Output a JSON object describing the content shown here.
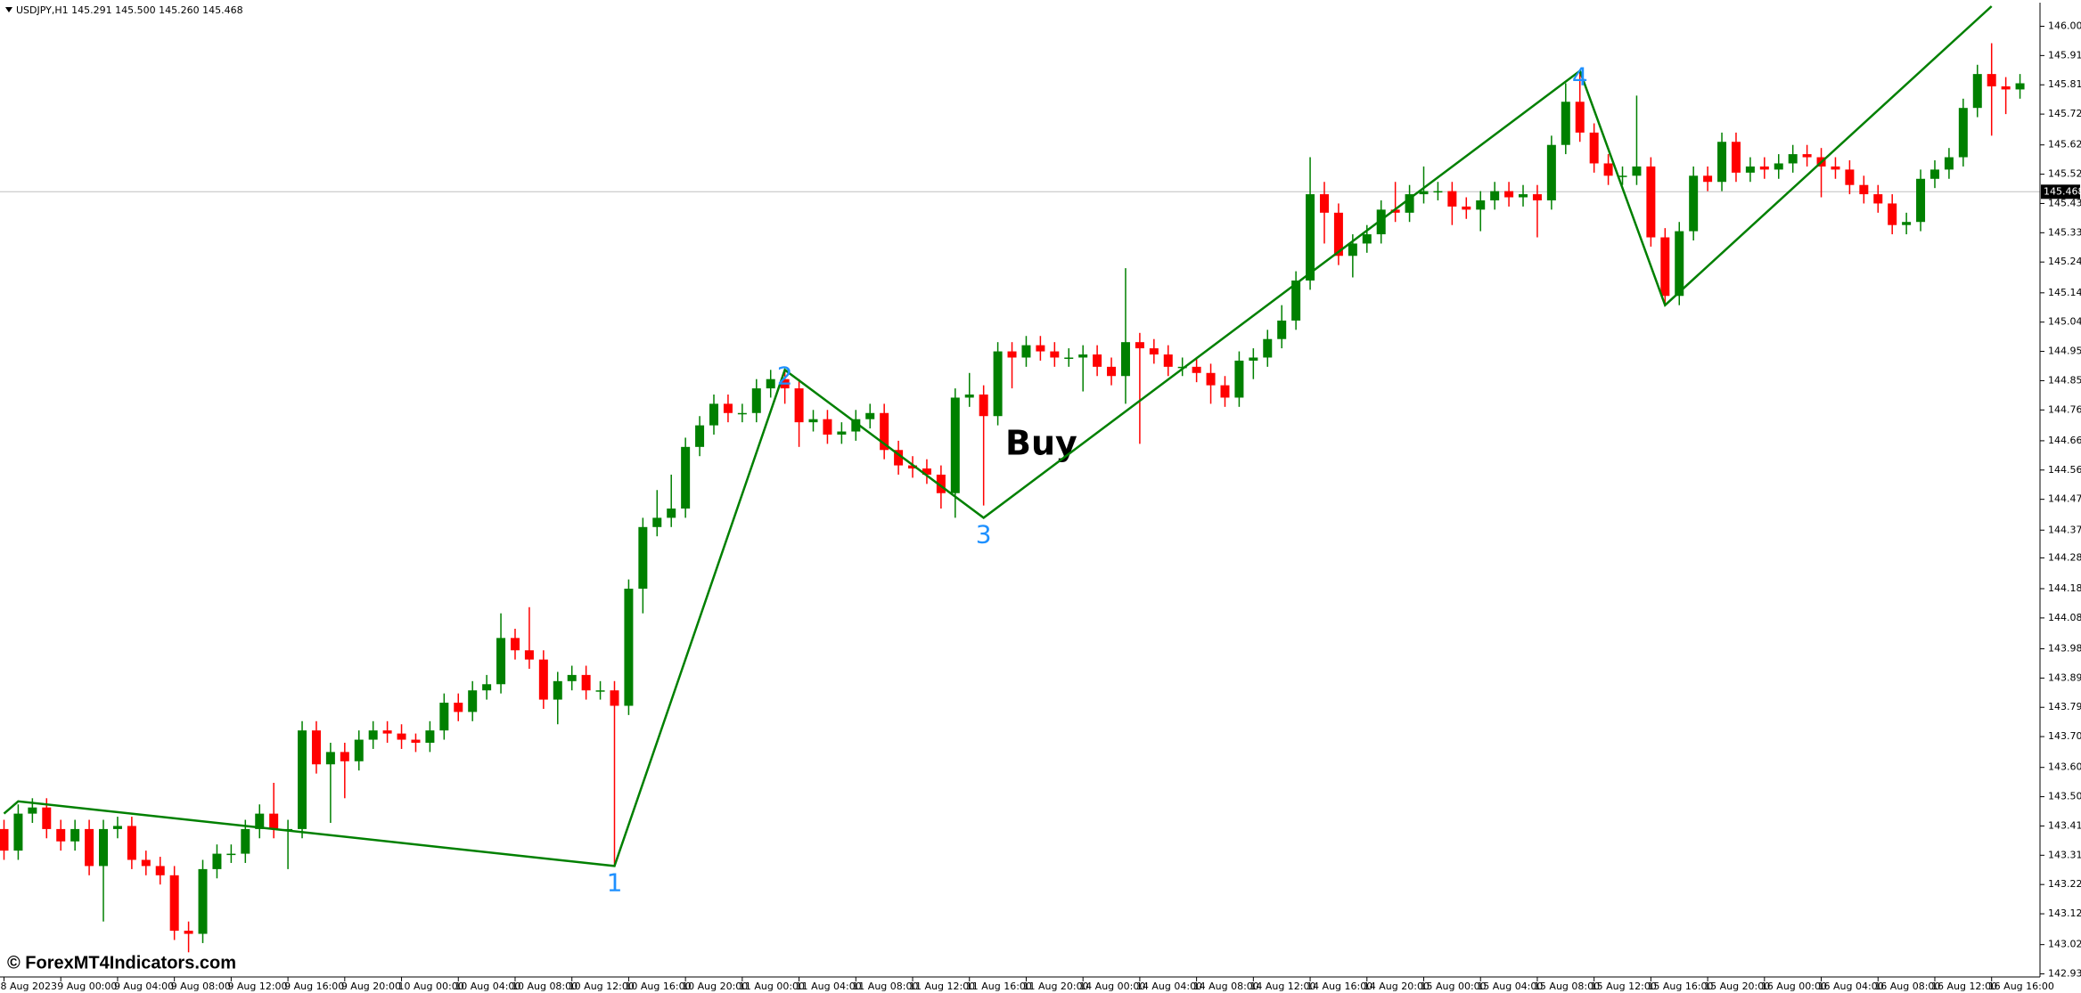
{
  "chart_data": {
    "type": "candlestick",
    "header": "USDJPY,H1  145.291 145.500 145.260 145.468",
    "watermark": "© ForexMT4Indicators.com",
    "annotation": "Buy",
    "up_color": "#008000",
    "down_color": "#ff0000",
    "categories": [
      "8 Aug 2023",
      null,
      null,
      null,
      "9 Aug 00:00",
      null,
      null,
      null,
      "9 Aug 04:00",
      null,
      null,
      null,
      "9 Aug 08:00",
      null,
      null,
      null,
      "9 Aug 12:00",
      null,
      null,
      null,
      "9 Aug 16:00",
      null,
      null,
      null,
      "9 Aug 20:00",
      null,
      null,
      null,
      "10 Aug 00:00",
      null,
      null,
      null,
      "10 Aug 04:00",
      null,
      null,
      null,
      "10 Aug 08:00",
      null,
      null,
      null,
      "10 Aug 12:00",
      null,
      null,
      null,
      "10 Aug 16:00",
      null,
      null,
      null,
      "10 Aug 20:00",
      null,
      null,
      null,
      "11 Aug 00:00",
      null,
      null,
      null,
      "11 Aug 04:00",
      null,
      null,
      null,
      "11 Aug 08:00",
      null,
      null,
      null,
      "11 Aug 12:00",
      null,
      null,
      null,
      "11 Aug 16:00",
      null,
      null,
      null,
      "11 Aug 20:00",
      null,
      null,
      null,
      "14 Aug 00:00",
      null,
      null,
      null,
      "14 Aug 04:00",
      null,
      null,
      null,
      "14 Aug 08:00",
      null,
      null,
      null,
      "14 Aug 12:00",
      null,
      null,
      null,
      "14 Aug 16:00",
      null,
      null,
      null,
      "14 Aug 20:00",
      null,
      null,
      null,
      "15 Aug 00:00",
      null,
      null,
      null,
      "15 Aug 04:00",
      null,
      null,
      null,
      "15 Aug 08:00",
      null,
      null,
      null,
      "15 Aug 12:00",
      null,
      null,
      null,
      "15 Aug 16:00",
      null,
      null,
      null,
      "15 Aug 20:00",
      null,
      null,
      null,
      "16 Aug 00:00",
      null,
      null,
      null,
      "16 Aug 04:00",
      null,
      null,
      null,
      "16 Aug 08:00",
      null,
      null,
      null,
      "16 Aug 12:00",
      null,
      null,
      null,
      "16 Aug 16:00",
      null,
      null
    ],
    "open": [
      143.4,
      143.33,
      143.45,
      143.47,
      143.4,
      143.36,
      143.4,
      143.28,
      143.4,
      143.41,
      143.3,
      143.28,
      143.25,
      143.07,
      143.06,
      143.27,
      143.32,
      143.32,
      143.4,
      143.45,
      143.4,
      143.4,
      143.72,
      143.61,
      143.65,
      143.62,
      143.69,
      143.72,
      143.71,
      143.69,
      143.68,
      143.72,
      143.81,
      143.78,
      143.85,
      143.87,
      144.02,
      143.98,
      143.95,
      143.82,
      143.88,
      143.9,
      143.85,
      143.85,
      143.8,
      144.18,
      144.38,
      144.41,
      144.44,
      144.64,
      144.71,
      144.78,
      144.75,
      144.75,
      144.83,
      144.86,
      144.83,
      144.72,
      144.73,
      144.68,
      144.69,
      144.73,
      144.75,
      144.63,
      144.58,
      144.57,
      144.55,
      144.49,
      144.8,
      144.81,
      144.74,
      144.95,
      144.93,
      144.97,
      144.95,
      144.93,
      144.93,
      144.94,
      144.9,
      144.87,
      144.98,
      144.96,
      144.94,
      144.9,
      144.9,
      144.88,
      144.84,
      144.8,
      144.92,
      144.93,
      144.99,
      145.05,
      145.18,
      145.46,
      145.4,
      145.26,
      145.3,
      145.33,
      145.41,
      145.4,
      145.46,
      145.47,
      145.47,
      145.42,
      145.41,
      145.44,
      145.47,
      145.45,
      145.46,
      145.44,
      145.62,
      145.76,
      145.66,
      145.56,
      145.52,
      145.52,
      145.55,
      145.32,
      145.13,
      145.34,
      145.52,
      145.5,
      145.63,
      145.53,
      145.55,
      145.54,
      145.56,
      145.59,
      145.58,
      145.55,
      145.54,
      145.49,
      145.46,
      145.43,
      145.36,
      145.37,
      145.51,
      145.54,
      145.58,
      145.74,
      145.85,
      145.81,
      145.8
    ],
    "high": [
      143.43,
      143.48,
      143.5,
      143.5,
      143.43,
      143.43,
      143.43,
      143.43,
      143.44,
      143.44,
      143.33,
      143.31,
      143.28,
      143.1,
      143.3,
      143.35,
      143.35,
      143.43,
      143.48,
      143.55,
      143.43,
      143.75,
      143.75,
      143.68,
      143.68,
      143.72,
      143.75,
      143.75,
      143.74,
      143.71,
      143.75,
      143.84,
      143.84,
      143.88,
      143.9,
      144.1,
      144.05,
      144.12,
      143.98,
      143.91,
      143.93,
      143.93,
      143.88,
      143.88,
      144.21,
      144.41,
      144.5,
      144.55,
      144.67,
      144.74,
      144.81,
      144.81,
      144.78,
      144.86,
      144.89,
      144.89,
      144.86,
      144.76,
      144.76,
      144.72,
      144.76,
      144.78,
      144.78,
      144.66,
      144.61,
      144.6,
      144.58,
      144.83,
      144.88,
      144.84,
      144.98,
      144.98,
      145.0,
      145.0,
      144.98,
      144.96,
      144.97,
      144.97,
      144.93,
      145.22,
      145.01,
      144.99,
      144.97,
      144.93,
      144.93,
      144.91,
      144.87,
      144.95,
      144.96,
      145.02,
      145.1,
      145.21,
      145.58,
      145.5,
      145.43,
      145.33,
      145.36,
      145.44,
      145.5,
      145.49,
      145.55,
      145.5,
      145.5,
      145.45,
      145.47,
      145.5,
      145.5,
      145.49,
      145.49,
      145.65,
      145.82,
      145.86,
      145.69,
      145.59,
      145.55,
      145.78,
      145.58,
      145.35,
      145.37,
      145.55,
      145.55,
      145.66,
      145.66,
      145.58,
      145.58,
      145.59,
      145.62,
      145.62,
      145.61,
      145.58,
      145.57,
      145.52,
      145.49,
      145.46,
      145.4,
      145.54,
      145.57,
      145.61,
      145.77,
      145.88,
      145.95,
      145.84,
      145.85
    ],
    "low": [
      143.3,
      143.3,
      143.42,
      143.37,
      143.33,
      143.33,
      143.25,
      143.1,
      143.37,
      143.27,
      143.25,
      143.22,
      143.04,
      143.0,
      143.03,
      143.24,
      143.29,
      143.29,
      143.37,
      143.37,
      143.27,
      143.37,
      143.58,
      143.42,
      143.5,
      143.59,
      143.66,
      143.68,
      143.66,
      143.65,
      143.65,
      143.69,
      143.75,
      143.75,
      143.82,
      143.84,
      143.95,
      143.92,
      143.79,
      143.74,
      143.85,
      143.82,
      143.82,
      143.28,
      143.77,
      144.1,
      144.35,
      144.38,
      144.41,
      144.61,
      144.68,
      144.72,
      144.72,
      144.72,
      144.8,
      144.78,
      144.64,
      144.69,
      144.65,
      144.65,
      144.66,
      144.7,
      144.6,
      144.55,
      144.54,
      144.52,
      144.44,
      144.41,
      144.77,
      144.45,
      144.71,
      144.83,
      144.9,
      144.92,
      144.9,
      144.9,
      144.82,
      144.87,
      144.84,
      144.78,
      144.65,
      144.91,
      144.87,
      144.87,
      144.85,
      144.78,
      144.77,
      144.77,
      144.86,
      144.9,
      144.96,
      145.02,
      145.15,
      145.3,
      145.23,
      145.19,
      145.27,
      145.3,
      145.37,
      145.37,
      145.43,
      145.44,
      145.36,
      145.38,
      145.34,
      145.41,
      145.42,
      145.42,
      145.32,
      145.41,
      145.59,
      145.63,
      145.53,
      145.49,
      145.49,
      145.49,
      145.29,
      145.1,
      145.1,
      145.31,
      145.47,
      145.47,
      145.5,
      145.5,
      145.51,
      145.51,
      145.53,
      145.55,
      145.45,
      145.51,
      145.46,
      145.43,
      145.4,
      145.33,
      145.33,
      145.34,
      145.48,
      145.51,
      145.55,
      145.71,
      145.65,
      145.72,
      145.77
    ],
    "close": [
      143.33,
      143.45,
      143.47,
      143.4,
      143.36,
      143.4,
      143.28,
      143.4,
      143.41,
      143.3,
      143.28,
      143.25,
      143.07,
      143.06,
      143.27,
      143.32,
      143.32,
      143.4,
      143.45,
      143.4,
      143.4,
      143.72,
      143.61,
      143.65,
      143.62,
      143.69,
      143.72,
      143.71,
      143.69,
      143.68,
      143.72,
      143.81,
      143.78,
      143.85,
      143.87,
      144.02,
      143.98,
      143.95,
      143.82,
      143.88,
      143.9,
      143.85,
      143.85,
      143.8,
      144.18,
      144.38,
      144.41,
      144.44,
      144.64,
      144.71,
      144.78,
      144.75,
      144.75,
      144.83,
      144.86,
      144.83,
      144.72,
      144.73,
      144.68,
      144.69,
      144.73,
      144.75,
      144.63,
      144.58,
      144.57,
      144.55,
      144.49,
      144.8,
      144.81,
      144.74,
      144.95,
      144.93,
      144.97,
      144.95,
      144.93,
      144.93,
      144.94,
      144.9,
      144.87,
      144.98,
      144.96,
      144.94,
      144.9,
      144.9,
      144.88,
      144.84,
      144.8,
      144.92,
      144.93,
      144.99,
      145.05,
      145.18,
      145.46,
      145.4,
      145.26,
      145.3,
      145.33,
      145.41,
      145.4,
      145.46,
      145.47,
      145.47,
      145.42,
      145.41,
      145.44,
      145.47,
      145.45,
      145.46,
      145.44,
      145.62,
      145.76,
      145.66,
      145.56,
      145.52,
      145.52,
      145.55,
      145.32,
      145.13,
      145.34,
      145.52,
      145.5,
      145.63,
      145.53,
      145.55,
      145.54,
      145.56,
      145.59,
      145.58,
      145.55,
      145.54,
      145.49,
      145.46,
      145.43,
      145.36,
      145.37,
      145.51,
      145.54,
      145.58,
      145.74,
      145.85,
      145.81,
      145.8,
      145.82
    ],
    "zigzag": {
      "color": "#008000",
      "x": [
        0,
        1,
        43,
        55,
        69,
        111,
        117,
        140
      ],
      "values": [
        143.45,
        143.49,
        143.28,
        144.89,
        144.41,
        145.86,
        145.1,
        146.07
      ]
    },
    "pivot_labels": [
      "1",
      "2",
      "3",
      "4"
    ],
    "pivot_color": "#1e90ff",
    "current_price": 145.468,
    "ylim": [
      142.92,
      146.07
    ],
    "yticks": [
      146.005,
      {
        "value": 145.91,
        "label": "145.910"
      },
      145.815,
      {
        "value": 145.72,
        "label": "145.720"
      },
      {
        "value": 145.62,
        "label": "145.620"
      },
      145.525,
      {
        "value": 145.43,
        "label": "145.430"
      },
      145.335,
      {
        "value": 145.24,
        "label": "145.240"
      },
      {
        "value": 145.14,
        "label": "145.140"
      },
      145.045,
      {
        "value": 144.95,
        "label": "144.950"
      },
      144.855,
      {
        "value": 144.76,
        "label": "144.760"
      },
      {
        "value": 144.66,
        "label": "144.660"
      },
      144.565,
      {
        "value": 144.47,
        "label": "144.470"
      },
      {
        "value": 144.37,
        "label": "144.370"
      },
      {
        "value": 144.28,
        "label": "144.280"
      },
      {
        "value": 144.18,
        "label": "144.180"
      },
      144.085,
      143.985,
      {
        "value": 143.89,
        "label": "143.890"
      },
      143.795,
      {
        "value": 143.7,
        "label": "143.700"
      },
      {
        "value": 143.6,
        "label": "143.600"
      },
      143.505,
      {
        "value": 143.41,
        "label": "143.410"
      },
      143.315,
      {
        "value": 143.22,
        "label": "143.220"
      },
      143.125,
      143.025,
      {
        "value": 142.93,
        "label": "142.930"
      }
    ]
  }
}
